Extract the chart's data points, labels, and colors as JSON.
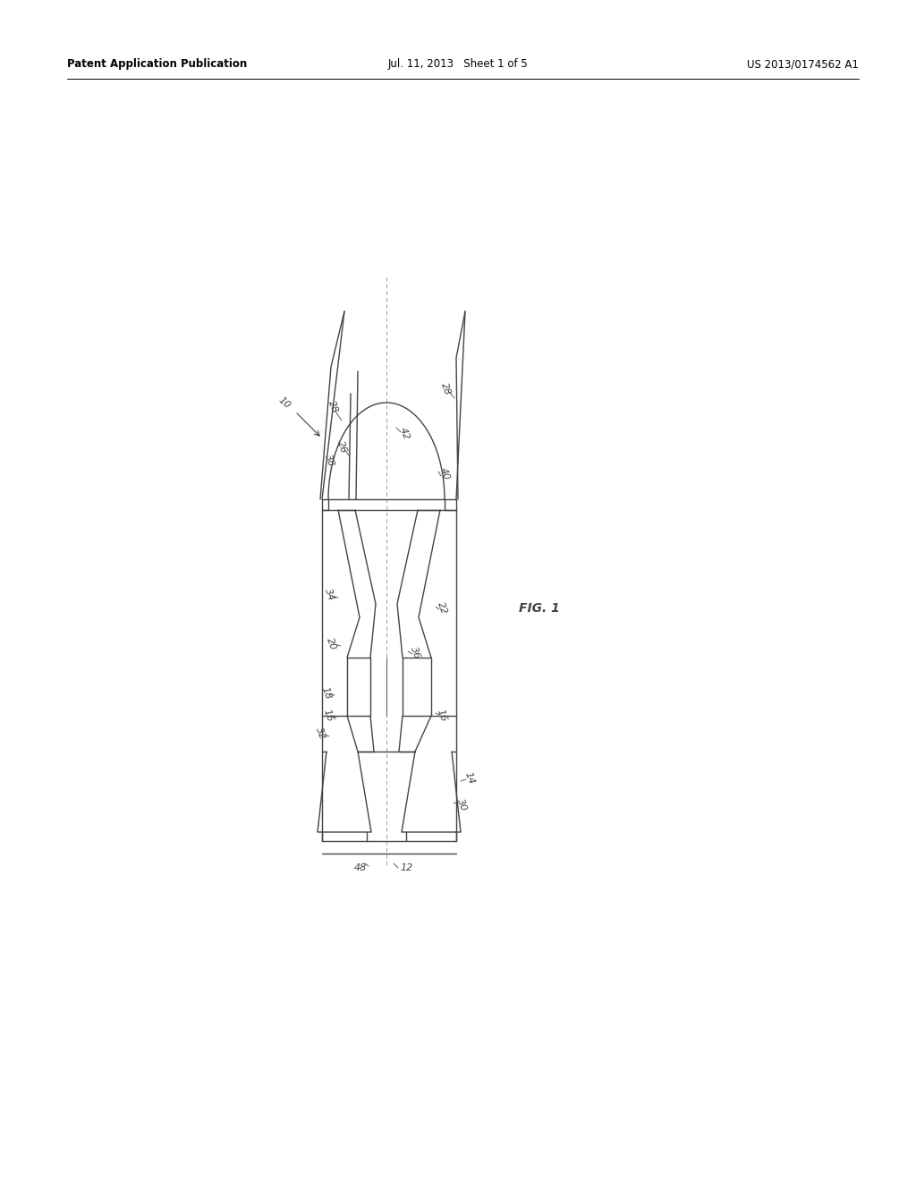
{
  "background_color": "#ffffff",
  "line_color": "#444444",
  "lw": 1.0,
  "tlw": 0.6,
  "page_width": 10.24,
  "page_height": 13.2,
  "header_left": "Patent Application Publication",
  "header_mid": "Jul. 11, 2013   Sheet 1 of 5",
  "header_right": "US 2013/0174562 A1",
  "fig_label": "FIG. 1"
}
